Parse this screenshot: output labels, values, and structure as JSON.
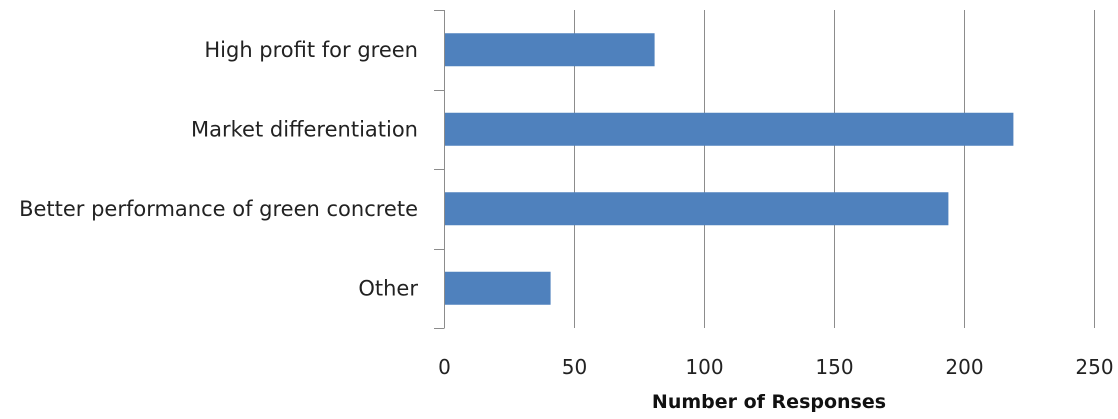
{
  "chart_data": {
    "type": "bar",
    "orientation": "horizontal",
    "title": "",
    "xlabel": "Number of Responses",
    "ylabel": "",
    "categories": [
      "High profit for green",
      "Market differentiation",
      "Better performance of green concrete",
      "Other"
    ],
    "values": [
      81,
      219,
      194,
      41
    ],
    "xlim": [
      0,
      250
    ],
    "xticks": [
      "0",
      "50",
      "100",
      "150",
      "200",
      "250"
    ],
    "grid": "vertical",
    "legend": "none",
    "bar_color": "#4f81bd"
  }
}
